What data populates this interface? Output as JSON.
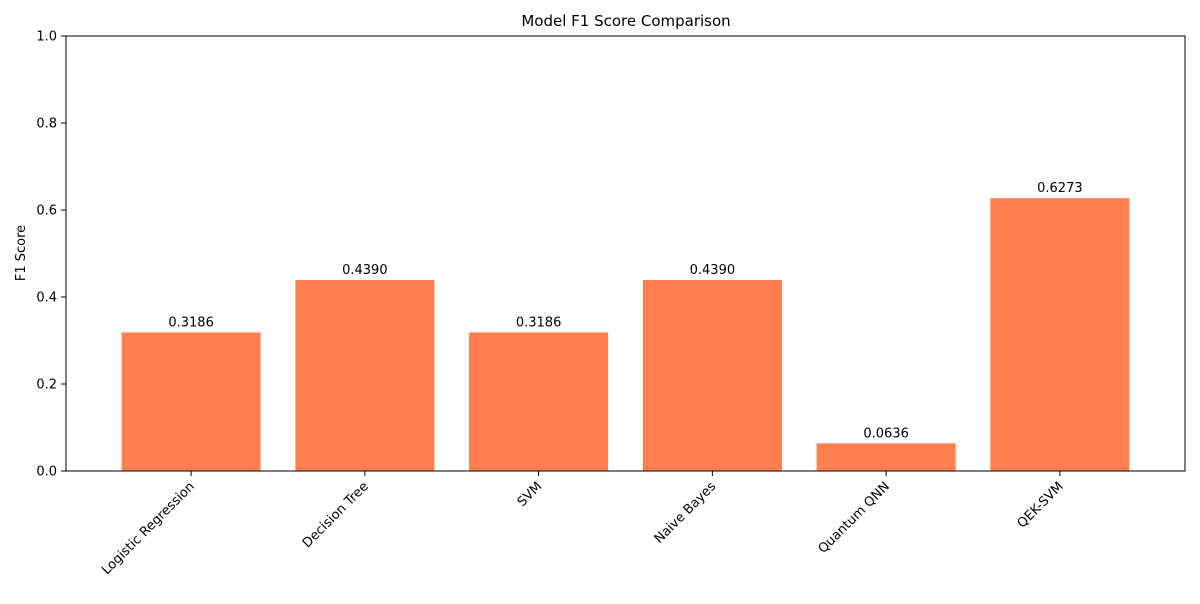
{
  "chart_data": {
    "type": "bar",
    "title": "Model F1 Score Comparison",
    "xlabel": "",
    "ylabel": "F1 Score",
    "categories": [
      "Logistic Regression",
      "Decision Tree",
      "SVM",
      "Naive Bayes",
      "Quantum QNN",
      "QEK-SVM"
    ],
    "values": [
      0.3186,
      0.439,
      0.3186,
      0.439,
      0.0636,
      0.6273
    ],
    "value_labels": [
      "0.3186",
      "0.4390",
      "0.3186",
      "0.4390",
      "0.0636",
      "0.6273"
    ],
    "ylim": [
      0,
      1.0
    ],
    "yticks": [
      0.0,
      0.2,
      0.4,
      0.6,
      0.8,
      1.0
    ],
    "ytick_labels": [
      "0.0",
      "0.2",
      "0.4",
      "0.6",
      "0.8",
      "1.0"
    ],
    "grid": false,
    "bar_color": "#ff7f50",
    "x_tick_rotation_deg": 45
  }
}
